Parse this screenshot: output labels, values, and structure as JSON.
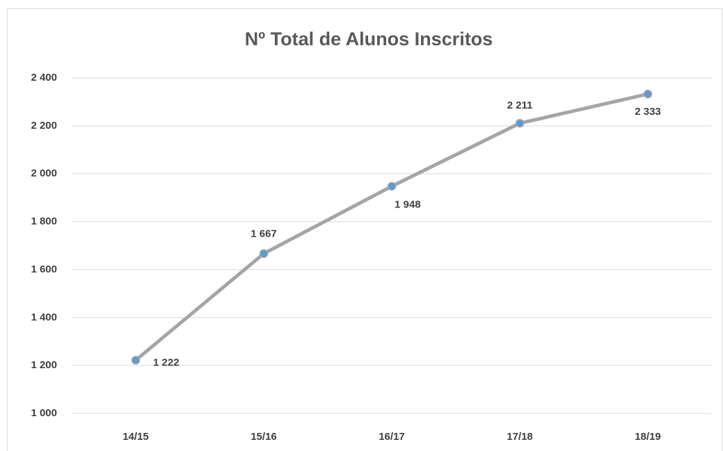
{
  "chart_data": {
    "type": "line",
    "title": "Nº Total de Alunos Inscritos",
    "categories": [
      "14/15",
      "15/16",
      "16/17",
      "17/18",
      "18/19"
    ],
    "series": [
      {
        "name": "Nº Total de Alunos Inscritos",
        "color": "#a5a5a5",
        "marker_color": "#5b9bd5",
        "values": [
          1222,
          1667,
          1948,
          2211,
          2333
        ],
        "value_labels": [
          "1 222",
          "1 667",
          "1 948",
          "2 211",
          "2 333"
        ]
      }
    ],
    "ylim": [
      1000,
      2400
    ],
    "yticks": [
      {
        "value": 1000,
        "label": "1 000"
      },
      {
        "value": 1200,
        "label": "1 200"
      },
      {
        "value": 1400,
        "label": "1 400"
      },
      {
        "value": 1600,
        "label": "1 600"
      },
      {
        "value": 1800,
        "label": "1 800"
      },
      {
        "value": 2000,
        "label": "2 000"
      },
      {
        "value": 2200,
        "label": "2 200"
      },
      {
        "value": 2400,
        "label": "2 400"
      }
    ],
    "grid": true
  }
}
